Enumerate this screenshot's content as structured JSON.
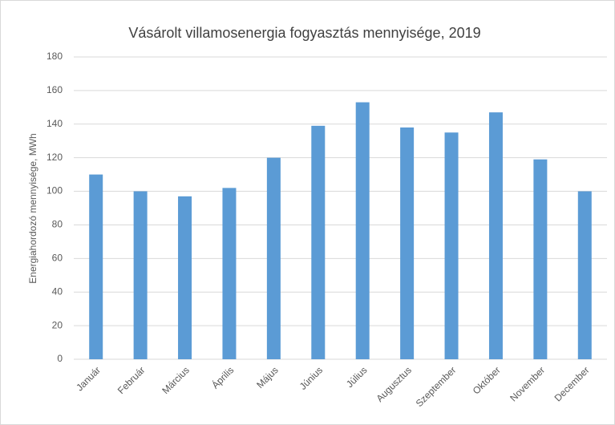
{
  "chart_data": {
    "type": "bar",
    "title": "Vásárolt villamosenergia fogyasztás mennyisége, 2019",
    "y_label": "Energiahordozó mennyisége, MWh",
    "categories": [
      "Január",
      "Február",
      "Március",
      "Április",
      "Május",
      "Június",
      "Július",
      "Augusztus",
      "Szeptember",
      "Október",
      "November",
      "December"
    ],
    "values": [
      110,
      100,
      97,
      102,
      120,
      139,
      153,
      138,
      135,
      147,
      119,
      100
    ],
    "color": "#5b9bd5",
    "ylim": [
      0,
      180
    ],
    "yticks": [
      0,
      20,
      40,
      60,
      80,
      100,
      120,
      140,
      160,
      180
    ],
    "grid": true
  }
}
